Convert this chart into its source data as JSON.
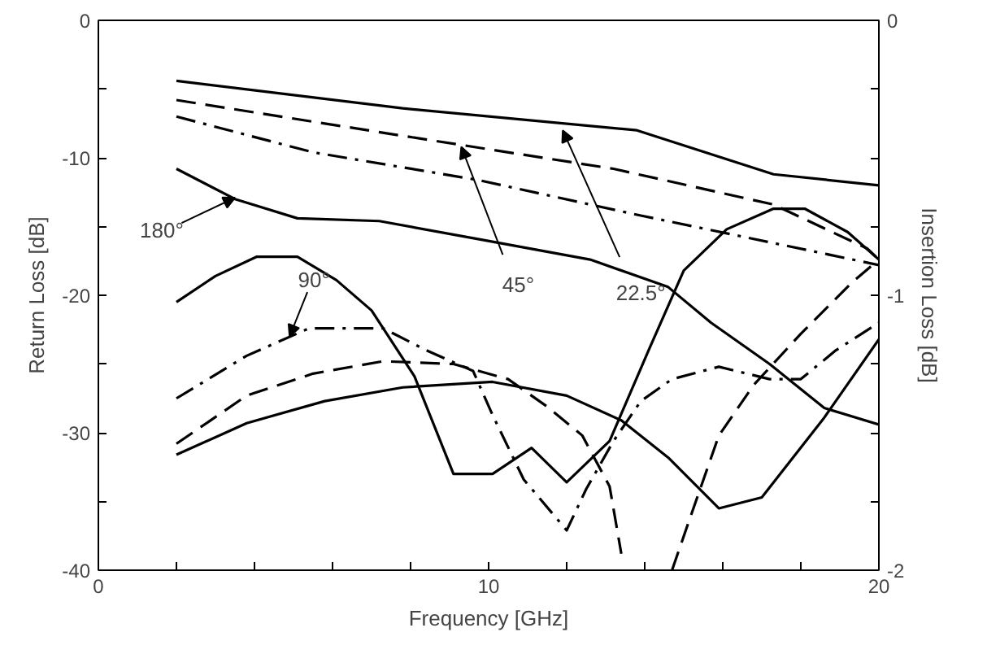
{
  "chart_data": {
    "type": "line",
    "xlabel": "Frequency [GHz]",
    "ylabel": "Return Loss [dB]",
    "y2label": "Insertion Loss [dB]",
    "xlim": [
      0,
      20
    ],
    "xticks": [
      0,
      {
        "value": 2,
        "label": null
      },
      {
        "value": 4,
        "label": null
      },
      {
        "value": 6,
        "label": null
      },
      {
        "value": 8,
        "label": null
      },
      10,
      {
        "value": 12,
        "label": null
      },
      {
        "value": 14,
        "label": null
      },
      {
        "value": 16,
        "label": null
      },
      {
        "value": 18,
        "label": null
      },
      20
    ],
    "ylim": [
      -40,
      0
    ],
    "yticks": [
      -40,
      {
        "value": -35,
        "label": null
      },
      -30,
      {
        "value": -25,
        "label": null
      },
      -20,
      {
        "value": -15,
        "label": null
      },
      -10,
      {
        "value": -5,
        "label": null
      },
      0
    ],
    "y2lim": [
      -2,
      0
    ],
    "y2ticks": [
      -2,
      {
        "value": -1.75,
        "label": null
      },
      {
        "value": -1.5,
        "label": null
      },
      {
        "value": -1.25,
        "label": null
      },
      -1,
      {
        "value": -0.75,
        "label": null
      },
      {
        "value": -0.5,
        "label": null
      },
      {
        "value": -0.25,
        "label": null
      },
      0
    ],
    "grid": false,
    "series": [
      {
        "color": "#000000",
        "line_style": "solid",
        "x": [
          2,
          3,
          4.05,
          5.1,
          6.1,
          7.0,
          8.1,
          9.1,
          10.1,
          11.1,
          12.0,
          13.1,
          14.1,
          15.0,
          16.1,
          17.3,
          18.1,
          19.2,
          20
        ],
        "values": [
          -20.5,
          -18.6,
          -17.2,
          -17.2,
          -18.9,
          -21.1,
          -25.9,
          -33.0,
          -33.0,
          -31.1,
          -33.6,
          -30.6,
          -24.0,
          -18.2,
          -15.2,
          -13.7,
          -13.7,
          -15.4,
          -17.4
        ]
      },
      {
        "color": "#000000",
        "line_style": "dashdot",
        "x": [
          2,
          3.8,
          5.4,
          7.3,
          8.4,
          9.6,
          10.1,
          10.9,
          12.0,
          12.5,
          13.2,
          13.9,
          14.7,
          15.9,
          17.2,
          18.0,
          18.9,
          20
        ],
        "values": [
          -27.5,
          -24.4,
          -22.4,
          -22.4,
          -24.0,
          -25.5,
          -28.7,
          -33.4,
          -37.1,
          -34.1,
          -30.6,
          -27.7,
          -26.1,
          -25.2,
          -26.1,
          -26.1,
          -24.0,
          -22.0
        ]
      },
      {
        "color": "#000000",
        "line_style": "dashed",
        "x": [
          2,
          3.8,
          5.5,
          7.3,
          9.1,
          10.5,
          11.5,
          12.4,
          13.1,
          13.4,
          14.0,
          14.7,
          15.1,
          15.9,
          16.8,
          18.0,
          19.3,
          20
        ],
        "values": [
          -30.8,
          -27.3,
          -25.7,
          -24.8,
          -25.0,
          -26.1,
          -28.1,
          -30.2,
          -33.9,
          -38.8,
          null,
          -40,
          -36.7,
          -30.2,
          -26.5,
          -22.8,
          -19.1,
          -17.4
        ]
      },
      {
        "color": "#000000",
        "line_style": "solid",
        "x": [
          2,
          3.8,
          5.8,
          7.8,
          10.1,
          12,
          13.4,
          14.6,
          15.9,
          17,
          18.6,
          20
        ],
        "values": [
          -31.6,
          -29.3,
          -27.7,
          -26.7,
          -26.3,
          -27.3,
          -29.1,
          -31.8,
          -35.5,
          -34.7,
          -28.9,
          -23.2
        ]
      },
      {
        "color": "#000000",
        "line_style": "solid",
        "axis": "y2",
        "x": [
          2,
          7.8,
          13.8,
          17.3,
          20
        ],
        "values": [
          -0.22,
          -0.32,
          -0.4,
          -0.56,
          -0.6
        ]
      },
      {
        "color": "#000000",
        "line_style": "dashed",
        "axis": "y2",
        "x": [
          2,
          7.8,
          13.2,
          17.3,
          19.7,
          20
        ],
        "values": [
          -0.29,
          -0.42,
          -0.54,
          -0.67,
          -0.83,
          -0.87
        ]
      },
      {
        "color": "#000000",
        "line_style": "dashdot",
        "axis": "y2",
        "x": [
          2,
          5.5,
          9.7,
          13.9,
          17.3,
          20
        ],
        "values": [
          -0.35,
          -0.48,
          -0.58,
          -0.71,
          -0.81,
          -0.89
        ]
      },
      {
        "color": "#000000",
        "line_style": "solid",
        "axis": "y2",
        "x": [
          2,
          3.5,
          5.1,
          7.2,
          9.9,
          12.6,
          14.6,
          15.7,
          17.2,
          18.6,
          20
        ],
        "values": [
          -0.54,
          -0.65,
          -0.72,
          -0.73,
          -0.8,
          -0.87,
          -0.97,
          -1.1,
          -1.25,
          -1.41,
          -1.47
        ]
      }
    ],
    "annotations": [
      {
        "text": "180°",
        "x": 3.5,
        "y": -12.9
      },
      {
        "text": "90°",
        "x": 4.9,
        "y": -23.0
      },
      {
        "text": "45°",
        "x": 9.3,
        "y": -9.2
      },
      {
        "text": "22.5°",
        "x": 11.9,
        "y": -8.0
      }
    ]
  }
}
